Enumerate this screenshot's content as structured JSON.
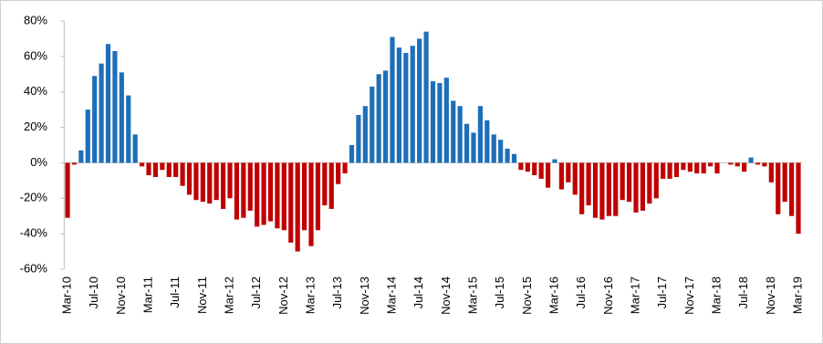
{
  "chart_data": {
    "type": "bar",
    "categories": [
      "Mar-10",
      null,
      null,
      null,
      "Jul-10",
      null,
      null,
      null,
      "Nov-10",
      null,
      null,
      null,
      "Mar-11",
      null,
      null,
      null,
      "Jul-11",
      null,
      null,
      null,
      "Nov-11",
      null,
      null,
      null,
      "Mar-12",
      null,
      null,
      null,
      "Jul-12",
      null,
      null,
      null,
      "Nov-12",
      null,
      null,
      null,
      "Mar-13",
      null,
      null,
      null,
      "Jul-13",
      null,
      null,
      null,
      "Nov-13",
      null,
      null,
      null,
      "Mar-14",
      null,
      null,
      null,
      "Jul-14",
      null,
      null,
      null,
      "Nov-14",
      null,
      null,
      null,
      "Mar-15",
      null,
      null,
      null,
      "Jul-15",
      null,
      null,
      null,
      "Nov-15",
      null,
      null,
      null,
      "Mar-16",
      null,
      null,
      null,
      "Jul-16",
      null,
      null,
      null,
      "Nov-16",
      null,
      null,
      null,
      "Mar-17",
      null,
      null,
      null,
      "Jul-17",
      null,
      null,
      null,
      "Nov-17",
      null,
      null,
      null,
      "Mar-18",
      null,
      null,
      null,
      "Jul-18",
      null,
      null,
      null,
      "Nov-18",
      null,
      null,
      null,
      "Mar-19"
    ],
    "values": [
      -31,
      -1,
      7,
      30,
      49,
      56,
      67,
      63,
      51,
      38,
      16,
      -2,
      -7,
      -8,
      -4,
      -8,
      -8,
      -13,
      -18,
      -21,
      -22,
      -23,
      -21,
      -26,
      -20,
      -32,
      -31,
      -27,
      -36,
      -35,
      -33,
      -37,
      -38,
      -45,
      -50,
      -38,
      -47,
      -38,
      -24,
      -26,
      -12,
      -6,
      10,
      27,
      32,
      43,
      50,
      52,
      71,
      65,
      62,
      66,
      70,
      74,
      46,
      45,
      48,
      35,
      32,
      22,
      17,
      32,
      24,
      16,
      13,
      8,
      5,
      -4,
      -5,
      -7,
      -9,
      -14,
      2,
      -15,
      -11,
      -18,
      -29,
      -24,
      -31,
      -32,
      -30,
      -30,
      -21,
      -22,
      -28,
      -27,
      -23,
      -20,
      -9,
      -9,
      -8,
      -4,
      -5,
      -6,
      -6,
      -2,
      -6,
      0,
      -1,
      -2,
      -5,
      3,
      -1,
      -2,
      -11,
      -29,
      -22,
      -30,
      -40
    ],
    "color": "#1f6fb8",
    "negative_color": "#c00000",
    "ylim": [
      -60,
      80
    ],
    "yticks": [
      {
        "value": -60,
        "label": "-60%"
      },
      {
        "value": -40,
        "label": "-40%"
      },
      {
        "value": -20,
        "label": "-20%"
      },
      {
        "value": 0,
        "label": "0%"
      },
      {
        "value": 20,
        "label": "20%"
      },
      {
        "value": 40,
        "label": "40%"
      },
      {
        "value": 60,
        "label": "60%"
      },
      {
        "value": 80,
        "label": "80%"
      }
    ],
    "grid": false
  }
}
